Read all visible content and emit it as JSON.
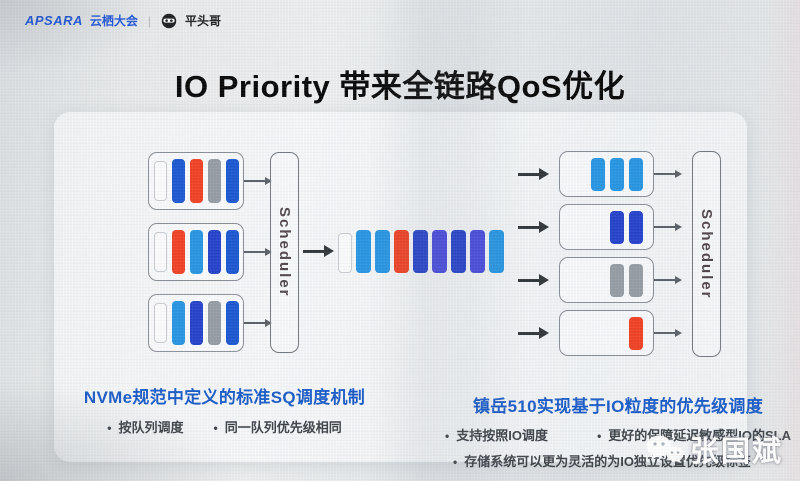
{
  "brand": {
    "apsara": "APSARA",
    "event": "云栖大会",
    "divider": "|",
    "partner": "平头哥"
  },
  "title": "IO Priority 带来全链路QoS优化",
  "colors": {
    "brand_blue": "#1a52d9",
    "heading_blue": "#1457c6",
    "title_dark": "#24272c",
    "text_dark": "#383d43",
    "bar_blue": "#1653cf",
    "bar_lightblue": "#2193e2",
    "bar_navy": "#1f3dc9",
    "bar_indigo": "#4346dc",
    "bar_red": "#f03c1e",
    "bar_gray": "#939aa1",
    "arrow_dark": "#2c3135",
    "scheduler_text": "#4b4046"
  },
  "left_diagram": {
    "scheduler_label": "Scheduler",
    "queues": [
      [
        "empty",
        "blue",
        "red",
        "gray",
        "blue"
      ],
      [
        "empty",
        "red",
        "lightblue",
        "navy",
        "blue"
      ],
      [
        "empty",
        "lightblue",
        "navy",
        "gray",
        "blue"
      ]
    ],
    "caption": "NVMe规范中定义的标准SQ调度机制",
    "bullets": [
      "按队列调度",
      "同一队列优先级相同"
    ]
  },
  "merged_stream": {
    "bars": [
      "empty",
      "lightblue",
      "lightblue",
      "red",
      "navy",
      "indigo",
      "navy",
      "indigo",
      "lightblue"
    ]
  },
  "right_diagram": {
    "scheduler_label": "Scheduler",
    "queues": [
      [
        "lightblue",
        "lightblue",
        "lightblue"
      ],
      [
        "navy",
        "navy"
      ],
      [
        "gray",
        "gray"
      ],
      [
        "red"
      ]
    ],
    "caption": "镇岳510实现基于IO粒度的优先级调度",
    "bullets": [
      "支持按照IO调度",
      "更好的保障延迟敏感型IO的SLA",
      "存储系统可以更为灵活的为IO独立设置优先级标签"
    ]
  },
  "watermark": {
    "name": "张国斌"
  }
}
